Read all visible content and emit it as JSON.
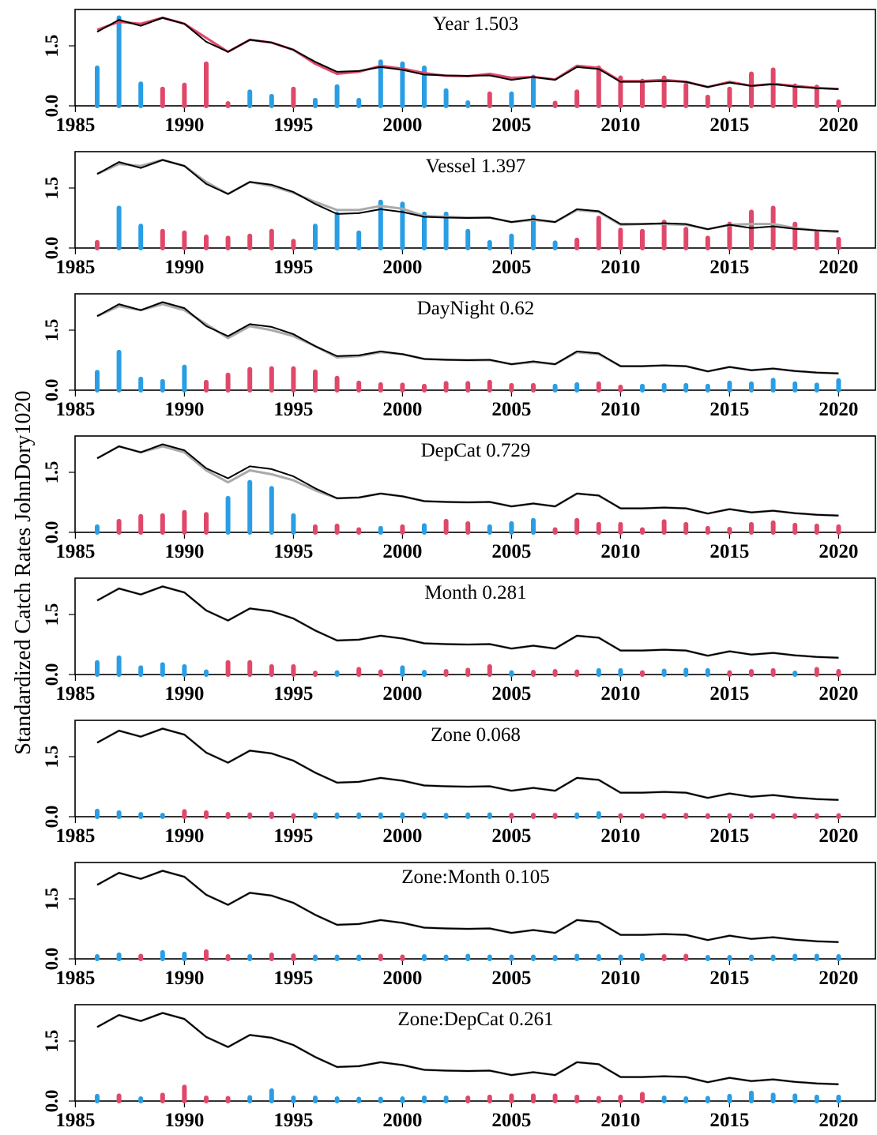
{
  "chart_data": {
    "type": "line",
    "ylabel": "Standardized Catch Rates JohnDory1020",
    "xlim": [
      1985,
      2020
    ],
    "ylim": [
      0,
      2.25
    ],
    "x_ticks": [
      1985,
      1990,
      1995,
      2000,
      2005,
      2010,
      2015,
      2020
    ],
    "y_ticks": [
      0.0,
      1.5
    ],
    "y_tick_labels": [
      "0.0",
      "1.5"
    ],
    "years": [
      1986,
      1987,
      1988,
      1989,
      1990,
      1991,
      1992,
      1993,
      1994,
      1995,
      1996,
      1997,
      1998,
      1999,
      2000,
      2001,
      2002,
      2003,
      2004,
      2005,
      2006,
      2007,
      2008,
      2009,
      2010,
      2011,
      2012,
      2013,
      2014,
      2015,
      2016,
      2017,
      2018,
      2019,
      2020
    ],
    "colors": {
      "positive": "#2a9ee4",
      "negative": "#e0486a",
      "line_current": "#000000",
      "line_previous": "#aaaaaa",
      "line_year": "#e0486a"
    },
    "standardized_index": [
      1.85,
      2.15,
      2.0,
      2.2,
      2.05,
      1.6,
      1.35,
      1.65,
      1.58,
      1.4,
      1.1,
      0.85,
      0.87,
      0.97,
      0.9,
      0.78,
      0.76,
      0.75,
      0.76,
      0.65,
      0.72,
      0.65,
      0.97,
      0.92,
      0.6,
      0.6,
      0.62,
      0.6,
      0.47,
      0.58,
      0.5,
      0.54,
      0.48,
      0.44,
      0.42
    ],
    "panels": [
      {
        "term": "Year",
        "value": "1.503",
        "previous": [
          1.9,
          2.1,
          2.05,
          2.2,
          2.05,
          1.7,
          1.35,
          1.65,
          1.58,
          1.4,
          1.05,
          0.8,
          0.85,
          1.0,
          0.93,
          0.82,
          0.75,
          0.74,
          0.8,
          0.7,
          0.72,
          0.66,
          1.0,
          0.95,
          0.62,
          0.62,
          0.65,
          0.6,
          0.47,
          0.6,
          0.5,
          0.55,
          0.5,
          0.45,
          0.42
        ],
        "previous_color": "line_year",
        "bars": [
          0.95,
          2.2,
          0.55,
          0.42,
          0.52,
          1.05,
          0.06,
          0.35,
          0.24,
          0.42,
          0.14,
          0.48,
          0.14,
          1.1,
          1.05,
          0.95,
          0.38,
          0.08,
          0.3,
          0.3,
          0.72,
          0.07,
          0.35,
          0.95,
          0.7,
          0.62,
          0.7,
          0.52,
          0.22,
          0.42,
          0.8,
          0.9,
          0.5,
          0.47,
          0.1
        ],
        "bar_signs": [
          "pos",
          "pos",
          "pos",
          "neg",
          "neg",
          "neg",
          "neg",
          "pos",
          "pos",
          "neg",
          "pos",
          "pos",
          "pos",
          "pos",
          "pos",
          "pos",
          "pos",
          "pos",
          "neg",
          "pos",
          "pos",
          "neg",
          "neg",
          "neg",
          "neg",
          "neg",
          "neg",
          "neg",
          "neg",
          "neg",
          "neg",
          "neg",
          "neg",
          "neg",
          "neg"
        ]
      },
      {
        "term": "Vessel",
        "value": "1.397",
        "previous": [
          1.85,
          2.1,
          2.05,
          2.2,
          2.05,
          1.65,
          1.35,
          1.65,
          1.55,
          1.38,
          1.15,
          0.95,
          0.95,
          1.05,
          0.98,
          0.8,
          0.78,
          0.76,
          0.76,
          0.65,
          0.7,
          0.65,
          0.95,
          0.9,
          0.58,
          0.6,
          0.6,
          0.58,
          0.47,
          0.58,
          0.6,
          0.6,
          0.5,
          0.44,
          0.4
        ],
        "bars": [
          0.14,
          1.0,
          0.55,
          0.42,
          0.38,
          0.28,
          0.25,
          0.3,
          0.42,
          0.17,
          0.55,
          0.85,
          0.38,
          1.15,
          1.1,
          0.85,
          0.85,
          0.42,
          0.14,
          0.3,
          0.78,
          0.13,
          0.2,
          0.75,
          0.45,
          0.42,
          0.65,
          0.47,
          0.25,
          0.6,
          0.9,
          1.0,
          0.6,
          0.38,
          0.22
        ],
        "bar_signs": [
          "neg",
          "pos",
          "pos",
          "neg",
          "neg",
          "neg",
          "neg",
          "neg",
          "neg",
          "neg",
          "pos",
          "pos",
          "pos",
          "pos",
          "pos",
          "pos",
          "pos",
          "pos",
          "pos",
          "pos",
          "pos",
          "pos",
          "neg",
          "neg",
          "neg",
          "neg",
          "neg",
          "neg",
          "neg",
          "neg",
          "neg",
          "neg",
          "neg",
          "neg",
          "neg"
        ]
      },
      {
        "term": "DayNight",
        "value": "0.62",
        "previous": [
          1.85,
          2.1,
          2.0,
          2.15,
          2.0,
          1.65,
          1.3,
          1.6,
          1.5,
          1.35,
          1.1,
          0.82,
          0.85,
          0.95,
          0.9,
          0.78,
          0.76,
          0.75,
          0.75,
          0.65,
          0.7,
          0.65,
          0.95,
          0.9,
          0.6,
          0.6,
          0.62,
          0.6,
          0.47,
          0.58,
          0.5,
          0.54,
          0.48,
          0.44,
          0.42
        ],
        "bars": [
          0.45,
          0.95,
          0.28,
          0.22,
          0.58,
          0.2,
          0.38,
          0.52,
          0.54,
          0.54,
          0.46,
          0.3,
          0.18,
          0.14,
          0.13,
          0.1,
          0.17,
          0.17,
          0.2,
          0.12,
          0.12,
          0.1,
          0.14,
          0.16,
          0.08,
          0.1,
          0.12,
          0.12,
          0.1,
          0.18,
          0.16,
          0.25,
          0.16,
          0.13,
          0.24
        ],
        "bar_signs": [
          "pos",
          "pos",
          "pos",
          "pos",
          "pos",
          "neg",
          "neg",
          "neg",
          "neg",
          "neg",
          "neg",
          "neg",
          "neg",
          "neg",
          "neg",
          "neg",
          "neg",
          "neg",
          "neg",
          "neg",
          "neg",
          "pos",
          "pos",
          "neg",
          "neg",
          "pos",
          "pos",
          "pos",
          "pos",
          "pos",
          "pos",
          "pos",
          "pos",
          "pos",
          "pos"
        ]
      },
      {
        "term": "DepCat",
        "value": "0.729",
        "previous": [
          1.85,
          2.15,
          2.0,
          2.15,
          2.0,
          1.55,
          1.25,
          1.55,
          1.45,
          1.3,
          1.05,
          0.85,
          0.87,
          0.97,
          0.9,
          0.78,
          0.76,
          0.75,
          0.76,
          0.65,
          0.72,
          0.65,
          0.97,
          0.92,
          0.6,
          0.6,
          0.62,
          0.6,
          0.47,
          0.58,
          0.5,
          0.54,
          0.48,
          0.44,
          0.42
        ],
        "bars": [
          0.14,
          0.28,
          0.4,
          0.42,
          0.5,
          0.45,
          0.85,
          1.25,
          1.1,
          0.42,
          0.14,
          0.16,
          0.07,
          0.1,
          0.14,
          0.17,
          0.28,
          0.22,
          0.14,
          0.22,
          0.3,
          0.07,
          0.3,
          0.2,
          0.2,
          0.07,
          0.27,
          0.2,
          0.1,
          0.08,
          0.2,
          0.24,
          0.18,
          0.16,
          0.14
        ],
        "bar_signs": [
          "pos",
          "neg",
          "neg",
          "neg",
          "neg",
          "neg",
          "pos",
          "pos",
          "pos",
          "pos",
          "neg",
          "neg",
          "neg",
          "pos",
          "neg",
          "pos",
          "neg",
          "neg",
          "pos",
          "pos",
          "pos",
          "neg",
          "neg",
          "neg",
          "neg",
          "neg",
          "neg",
          "neg",
          "neg",
          "neg",
          "neg",
          "neg",
          "neg",
          "neg",
          "neg"
        ]
      },
      {
        "term": "Month",
        "value": "0.281",
        "previous": [
          1.85,
          2.15,
          2.0,
          2.2,
          2.05,
          1.6,
          1.35,
          1.65,
          1.58,
          1.4,
          1.1,
          0.85,
          0.87,
          0.97,
          0.9,
          0.78,
          0.76,
          0.75,
          0.76,
          0.65,
          0.72,
          0.65,
          0.97,
          0.92,
          0.6,
          0.6,
          0.62,
          0.6,
          0.47,
          0.58,
          0.5,
          0.54,
          0.48,
          0.44,
          0.42
        ],
        "bars": [
          0.3,
          0.42,
          0.17,
          0.25,
          0.2,
          0.07,
          0.3,
          0.3,
          0.2,
          0.2,
          0.04,
          0.05,
          0.13,
          0.07,
          0.17,
          0.06,
          0.08,
          0.11,
          0.2,
          0.05,
          0.06,
          0.08,
          0.07,
          0.1,
          0.1,
          0.05,
          0.09,
          0.11,
          0.1,
          0.05,
          0.08,
          0.1,
          0.04,
          0.13,
          0.08
        ],
        "bar_signs": [
          "pos",
          "pos",
          "pos",
          "pos",
          "pos",
          "pos",
          "neg",
          "neg",
          "neg",
          "neg",
          "neg",
          "pos",
          "neg",
          "neg",
          "pos",
          "pos",
          "neg",
          "neg",
          "neg",
          "pos",
          "neg",
          "neg",
          "neg",
          "pos",
          "pos",
          "neg",
          "pos",
          "pos",
          "pos",
          "neg",
          "neg",
          "neg",
          "pos",
          "neg",
          "neg"
        ]
      },
      {
        "term": "Zone",
        "value": "0.068",
        "previous": [
          1.85,
          2.15,
          2.0,
          2.2,
          2.05,
          1.6,
          1.35,
          1.65,
          1.58,
          1.4,
          1.1,
          0.85,
          0.87,
          0.97,
          0.9,
          0.78,
          0.76,
          0.75,
          0.76,
          0.65,
          0.72,
          0.65,
          0.97,
          0.92,
          0.6,
          0.6,
          0.62,
          0.6,
          0.47,
          0.58,
          0.5,
          0.54,
          0.48,
          0.44,
          0.42
        ],
        "bars": [
          0.14,
          0.1,
          0.06,
          0.04,
          0.13,
          0.1,
          0.06,
          0.05,
          0.07,
          0.03,
          0.05,
          0.05,
          0.05,
          0.05,
          0.05,
          0.05,
          0.04,
          0.05,
          0.05,
          0.04,
          0.04,
          0.04,
          0.05,
          0.08,
          0.03,
          0.03,
          0.03,
          0.04,
          0.03,
          0.03,
          0.03,
          0.03,
          0.03,
          0.03,
          0.03
        ],
        "bar_signs": [
          "pos",
          "pos",
          "pos",
          "pos",
          "neg",
          "neg",
          "neg",
          "neg",
          "neg",
          "neg",
          "pos",
          "pos",
          "pos",
          "pos",
          "pos",
          "pos",
          "pos",
          "pos",
          "pos",
          "neg",
          "neg",
          "neg",
          "pos",
          "pos",
          "neg",
          "neg",
          "neg",
          "neg",
          "neg",
          "neg",
          "neg",
          "neg",
          "neg",
          "neg",
          "neg"
        ]
      },
      {
        "term": "Zone:Month",
        "value": "0.105",
        "previous": [
          1.85,
          2.15,
          2.0,
          2.2,
          2.05,
          1.6,
          1.35,
          1.65,
          1.58,
          1.4,
          1.1,
          0.85,
          0.87,
          0.97,
          0.9,
          0.78,
          0.76,
          0.75,
          0.76,
          0.65,
          0.72,
          0.65,
          0.97,
          0.92,
          0.6,
          0.6,
          0.62,
          0.6,
          0.47,
          0.58,
          0.5,
          0.54,
          0.48,
          0.44,
          0.42
        ],
        "bars": [
          0.06,
          0.1,
          0.07,
          0.16,
          0.12,
          0.18,
          0.06,
          0.06,
          0.1,
          0.08,
          0.05,
          0.05,
          0.05,
          0.07,
          0.05,
          0.06,
          0.05,
          0.07,
          0.05,
          0.05,
          0.05,
          0.04,
          0.07,
          0.06,
          0.05,
          0.09,
          0.06,
          0.07,
          0.04,
          0.04,
          0.05,
          0.05,
          0.07,
          0.07,
          0.06
        ],
        "bar_signs": [
          "pos",
          "pos",
          "neg",
          "pos",
          "pos",
          "neg",
          "neg",
          "pos",
          "neg",
          "neg",
          "pos",
          "pos",
          "pos",
          "neg",
          "neg",
          "pos",
          "pos",
          "pos",
          "pos",
          "pos",
          "pos",
          "pos",
          "pos",
          "pos",
          "pos",
          "pos",
          "neg",
          "neg",
          "pos",
          "pos",
          "pos",
          "pos",
          "pos",
          "pos",
          "pos"
        ]
      },
      {
        "term": "Zone:DepCat",
        "value": "0.261",
        "previous": [
          1.85,
          2.15,
          2.0,
          2.2,
          2.05,
          1.6,
          1.35,
          1.65,
          1.58,
          1.4,
          1.1,
          0.85,
          0.87,
          0.97,
          0.9,
          0.78,
          0.76,
          0.75,
          0.76,
          0.65,
          0.72,
          0.65,
          0.97,
          0.92,
          0.6,
          0.6,
          0.62,
          0.6,
          0.47,
          0.58,
          0.5,
          0.54,
          0.48,
          0.44,
          0.42
        ],
        "bars": [
          0.12,
          0.13,
          0.06,
          0.15,
          0.35,
          0.08,
          0.07,
          0.09,
          0.26,
          0.08,
          0.08,
          0.06,
          0.05,
          0.05,
          0.06,
          0.08,
          0.08,
          0.08,
          0.1,
          0.13,
          0.13,
          0.13,
          0.1,
          0.07,
          0.1,
          0.17,
          0.08,
          0.06,
          0.07,
          0.12,
          0.2,
          0.15,
          0.13,
          0.1,
          0.1
        ],
        "bar_signs": [
          "pos",
          "neg",
          "pos",
          "neg",
          "neg",
          "neg",
          "neg",
          "pos",
          "pos",
          "pos",
          "pos",
          "pos",
          "pos",
          "pos",
          "pos",
          "pos",
          "pos",
          "neg",
          "neg",
          "neg",
          "neg",
          "neg",
          "neg",
          "neg",
          "neg",
          "neg",
          "pos",
          "pos",
          "pos",
          "pos",
          "pos",
          "pos",
          "pos",
          "pos",
          "pos"
        ]
      }
    ]
  }
}
